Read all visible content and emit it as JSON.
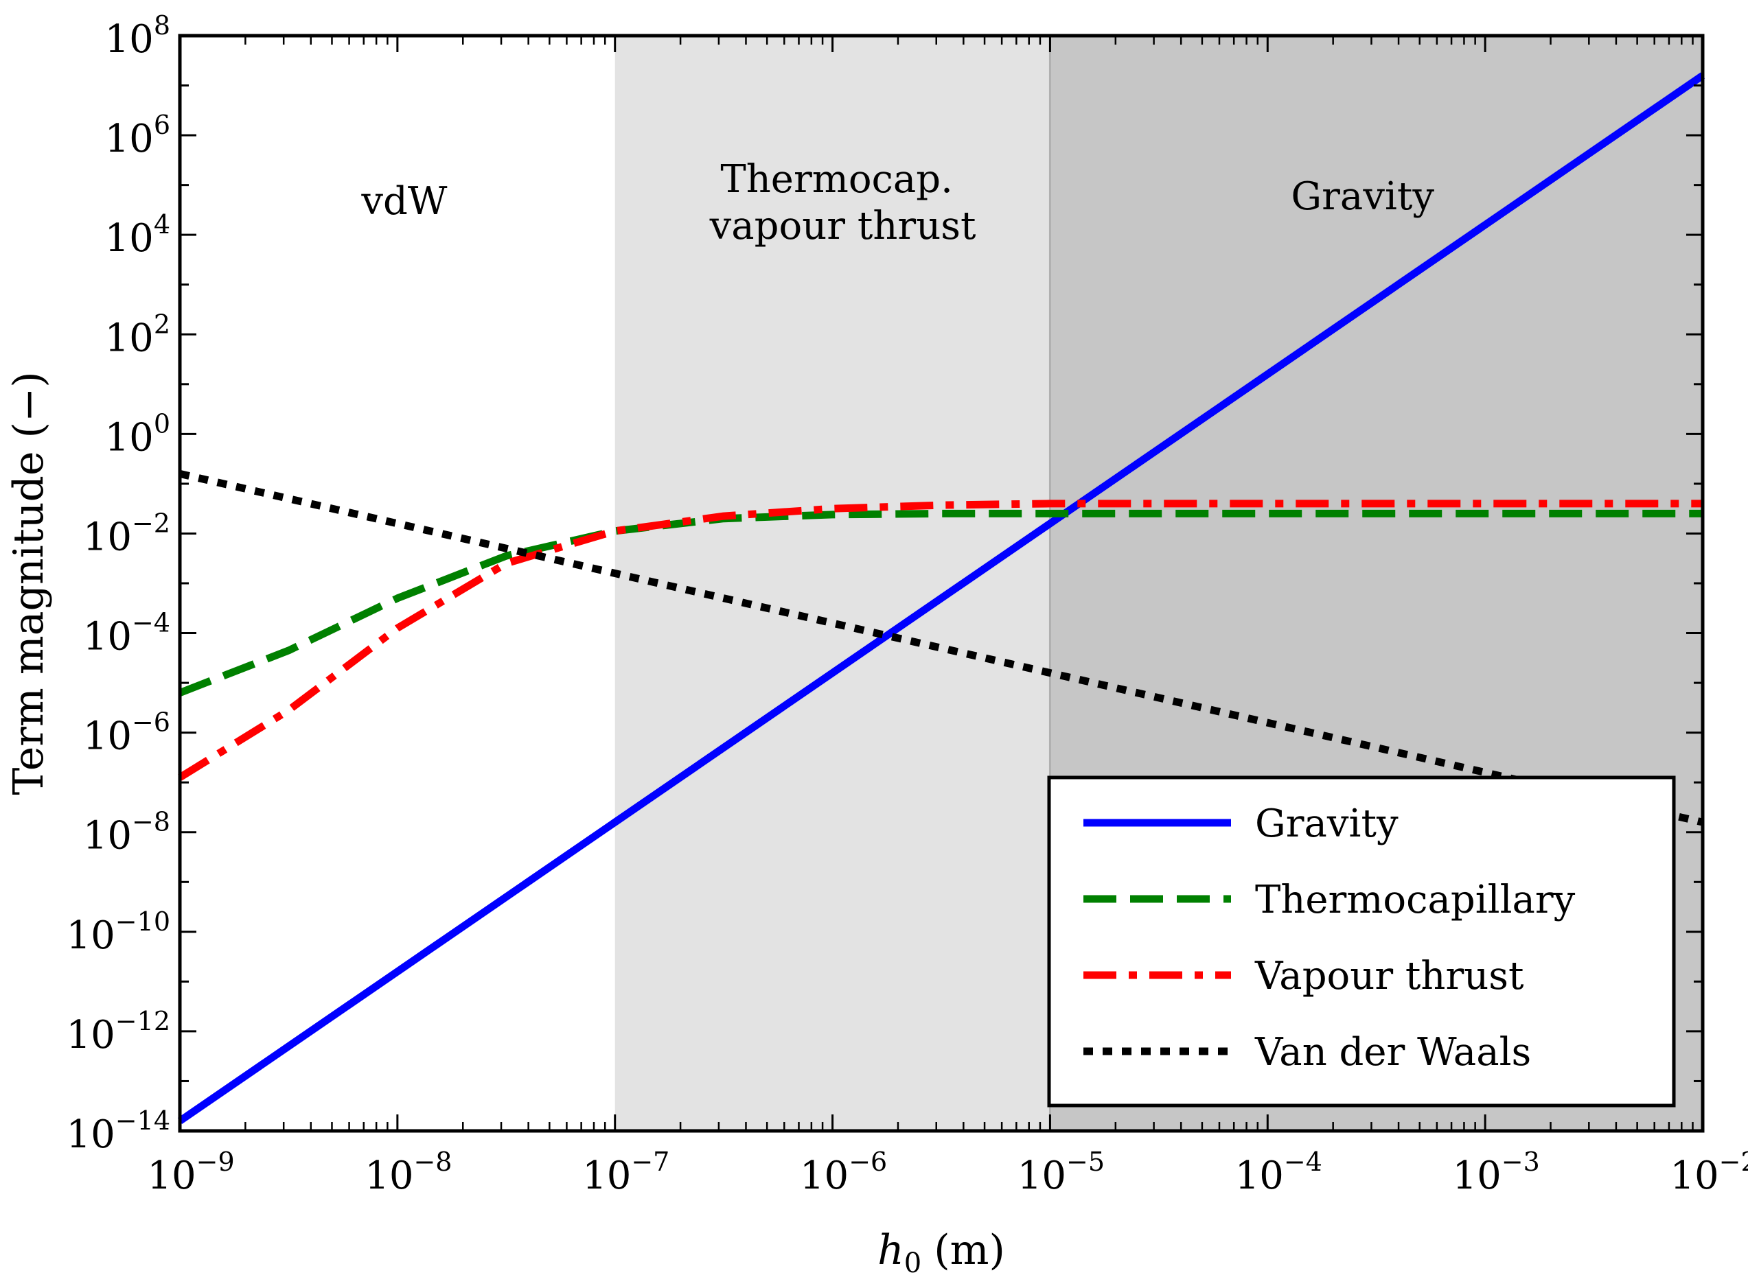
{
  "chart_data": {
    "type": "line",
    "xscale": "log",
    "yscale": "log",
    "xlabel": {
      "var": "h",
      "sub": "0",
      "unit": "(m)"
    },
    "ylabel": "Term magnitude (−)",
    "xlim_exp": [
      -9,
      -2
    ],
    "ylim_exp": [
      -14,
      8
    ],
    "x_ticks": [
      {
        "base": "10",
        "exp": "−9",
        "value": -9
      },
      {
        "base": "10",
        "exp": "−8",
        "value": -8
      },
      {
        "base": "10",
        "exp": "−7",
        "value": -7
      },
      {
        "base": "10",
        "exp": "−6",
        "value": -6
      },
      {
        "base": "10",
        "exp": "−5",
        "value": -5
      },
      {
        "base": "10",
        "exp": "−4",
        "value": -4
      },
      {
        "base": "10",
        "exp": "−3",
        "value": -3
      },
      {
        "base": "10",
        "exp": "−2",
        "value": -2
      }
    ],
    "y_ticks": [
      {
        "base": "10",
        "exp": "8",
        "value": 8
      },
      {
        "base": "10",
        "exp": "6",
        "value": 6
      },
      {
        "base": "10",
        "exp": "4",
        "value": 4
      },
      {
        "base": "10",
        "exp": "2",
        "value": 2
      },
      {
        "base": "10",
        "exp": "0",
        "value": 0
      },
      {
        "base": "10",
        "exp": "−2",
        "value": -2
      },
      {
        "base": "10",
        "exp": "−4",
        "value": -4
      },
      {
        "base": "10",
        "exp": "−6",
        "value": -6
      },
      {
        "base": "10",
        "exp": "−8",
        "value": -8
      },
      {
        "base": "10",
        "exp": "−10",
        "value": -10
      },
      {
        "base": "10",
        "exp": "−12",
        "value": -12
      },
      {
        "base": "10",
        "exp": "−14",
        "value": -14
      }
    ],
    "regions": [
      {
        "name": "vdW",
        "lines": [
          "vdW"
        ],
        "x_from_exp": -9,
        "x_to_exp": -7,
        "color": "#ffffff"
      },
      {
        "name": "thermocap",
        "lines": [
          "Thermocap.",
          "vapour thrust"
        ],
        "x_from_exp": -7,
        "x_to_exp": -5,
        "color": "#e3e3e3"
      },
      {
        "name": "gravity",
        "lines": [
          "Gravity"
        ],
        "x_from_exp": -5,
        "x_to_exp": -2,
        "color": "#c6c6c6"
      }
    ],
    "series": [
      {
        "name": "Gravity",
        "color": "#0000ff",
        "style": "solid",
        "points_log10": [
          [
            -9,
            -13.8
          ],
          [
            -2,
            7.2
          ]
        ]
      },
      {
        "name": "Thermocapillary",
        "color": "#008000",
        "style": "dashed",
        "points_log10": [
          [
            -9,
            -5.2
          ],
          [
            -8.5,
            -4.35
          ],
          [
            -8,
            -3.3
          ],
          [
            -7.5,
            -2.45
          ],
          [
            -7,
            -1.95
          ],
          [
            -6.5,
            -1.7
          ],
          [
            -6,
            -1.62
          ],
          [
            -5.5,
            -1.6
          ],
          [
            -5,
            -1.6
          ],
          [
            -4,
            -1.6
          ],
          [
            -3,
            -1.6
          ],
          [
            -2,
            -1.6
          ]
        ]
      },
      {
        "name": "Vapour thrust",
        "color": "#ff0000",
        "style": "dashdot",
        "points_log10": [
          [
            -9,
            -6.9
          ],
          [
            -8.5,
            -5.55
          ],
          [
            -8,
            -3.9
          ],
          [
            -7.5,
            -2.6
          ],
          [
            -7,
            -1.95
          ],
          [
            -6.5,
            -1.65
          ],
          [
            -6,
            -1.5
          ],
          [
            -5.5,
            -1.43
          ],
          [
            -5,
            -1.4
          ],
          [
            -4,
            -1.4
          ],
          [
            -3,
            -1.4
          ],
          [
            -2,
            -1.4
          ]
        ]
      },
      {
        "name": "Van der Waals",
        "color": "#000000",
        "style": "dotted",
        "points_log10": [
          [
            -9,
            -0.8
          ],
          [
            -2,
            -7.8
          ]
        ]
      }
    ],
    "legend": {
      "position": "bottom-right",
      "entries": [
        "Gravity",
        "Thermocapillary",
        "Vapour thrust",
        "Van der Waals"
      ]
    }
  }
}
